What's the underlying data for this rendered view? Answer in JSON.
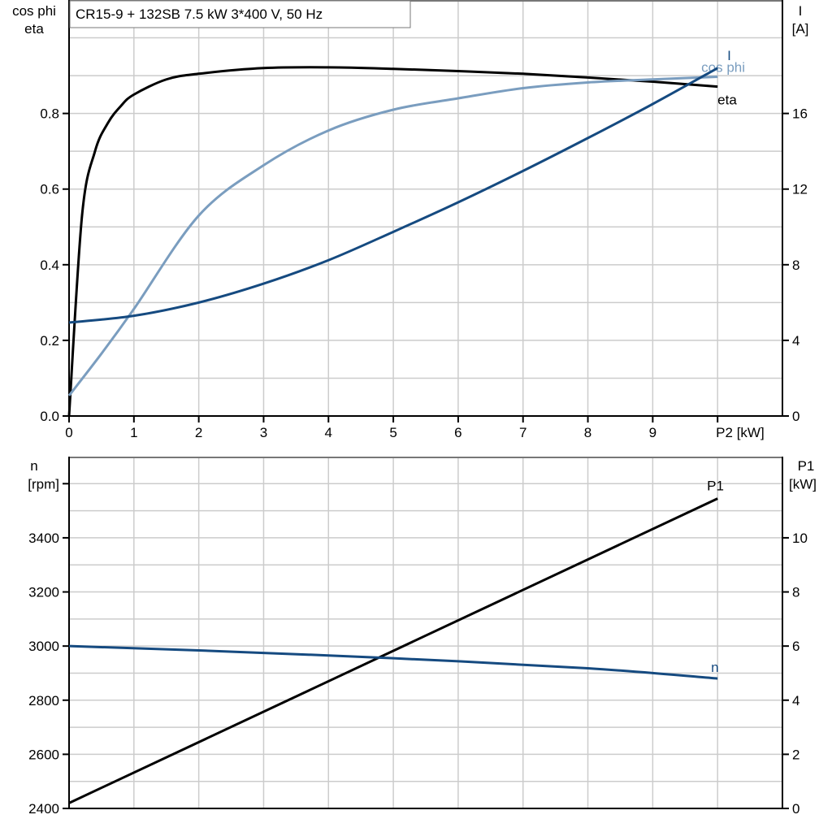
{
  "chart_data": [
    {
      "type": "line",
      "title": "CR15-9 + 132SB   7.5 kW   3*400 V, 50 Hz",
      "xlabel": "P2 [kW]",
      "xlim": [
        0,
        11
      ],
      "xticks": [
        0,
        1,
        2,
        3,
        4,
        5,
        6,
        7,
        8,
        9
      ],
      "ylabel_left": [
        "cos phi",
        "eta"
      ],
      "ylim_left": [
        0,
        1.1
      ],
      "yticks_left": [
        "0.0",
        "0.2",
        "0.4",
        "0.6",
        "0.8"
      ],
      "ylabel_right": [
        "I",
        "[A]"
      ],
      "ylim_right": [
        0,
        22
      ],
      "yticks_right": [
        "0",
        "4",
        "8",
        "12",
        "16"
      ],
      "grid": true,
      "series": [
        {
          "name": "eta",
          "axis": "left",
          "color": "#000000",
          "x": [
            0,
            0.2,
            0.4,
            0.6,
            0.8,
            1,
            1.5,
            2,
            3,
            4,
            5,
            6,
            7,
            8,
            9,
            10
          ],
          "y": [
            0,
            0.53,
            0.7,
            0.775,
            0.82,
            0.85,
            0.89,
            0.905,
            0.92,
            0.922,
            0.918,
            0.912,
            0.905,
            0.895,
            0.884,
            0.871
          ]
        },
        {
          "name": "cos phi",
          "axis": "left",
          "color": "#7a9dbf",
          "x": [
            0,
            0.5,
            1,
            2,
            3,
            4,
            5,
            6,
            7,
            8,
            9,
            10
          ],
          "y": [
            0.054,
            0.165,
            0.283,
            0.53,
            0.663,
            0.755,
            0.81,
            0.84,
            0.867,
            0.882,
            0.89,
            0.897
          ]
        },
        {
          "name": "I",
          "axis": "right",
          "color": "#154a80",
          "x": [
            0,
            1,
            2,
            3,
            4,
            5,
            6,
            7,
            8,
            9,
            10
          ],
          "y": [
            4.94,
            5.3,
            6.0,
            7.0,
            8.24,
            9.74,
            11.3,
            12.96,
            14.7,
            16.5,
            18.4
          ]
        }
      ]
    },
    {
      "type": "line",
      "xlim": [
        0,
        11
      ],
      "ylabel_left": [
        "n",
        "[rpm]"
      ],
      "ylim_left": [
        2400,
        3700
      ],
      "yticks_left": [
        "2400",
        "2600",
        "2800",
        "3000",
        "3200",
        "3400"
      ],
      "ylabel_right": [
        "P1",
        "[kW]"
      ],
      "ylim_right": [
        0,
        13
      ],
      "yticks_right": [
        "0",
        "2",
        "4",
        "6",
        "8",
        "10"
      ],
      "grid": true,
      "series": [
        {
          "name": "P1",
          "axis": "right",
          "color": "#000000",
          "x": [
            0,
            10
          ],
          "y": [
            0.2,
            11.45
          ]
        },
        {
          "name": "n",
          "axis": "left",
          "color": "#154a80",
          "x": [
            0,
            2,
            5,
            8,
            10
          ],
          "y": [
            3000,
            2984,
            2955,
            2918,
            2880
          ]
        }
      ]
    }
  ]
}
